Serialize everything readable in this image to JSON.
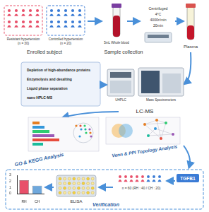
{
  "enrollment": {
    "title": "Enrolled subject",
    "groups": [
      {
        "label": "Resistant hypertension",
        "n": "(n = 30)",
        "color": "#e8506a"
      },
      {
        "label": "Controlled hypertension",
        "n": "(n = 20)",
        "color": "#3a7bd5"
      }
    ]
  },
  "sample": {
    "title": "Sample collection",
    "blood": "5mL Whole blood",
    "centrifuge": [
      "Centrifuged",
      "4°C",
      "4000r/min",
      "20min"
    ],
    "product": "Plasma"
  },
  "lcms": {
    "title": "LC-MS",
    "steps": [
      "Depletion of high-abundance proteins",
      "Enzymolysis and desalting",
      "Liquid phase separation",
      "nano HPLC-MS"
    ],
    "instruments": [
      "UHPLC",
      "Mass Spectrometers"
    ]
  },
  "analysis": {
    "left": "GO & KEGG Analysis",
    "right": "Venn & PPI Topology Analysis"
  },
  "verification": {
    "title": "Verification",
    "method": "ELISA",
    "target": "TGFB1",
    "cohort": "n = 60 (RH : 40 / CH : 20)"
  },
  "chart_data": {
    "type": "bar",
    "categories": [
      "RH",
      "CH"
    ],
    "values": [
      2.2,
      1.3
    ],
    "colors": [
      "#e8506a",
      "#6fa8dc"
    ],
    "ylim": [
      0,
      3
    ],
    "yticks": [
      0,
      1,
      2,
      3
    ]
  }
}
